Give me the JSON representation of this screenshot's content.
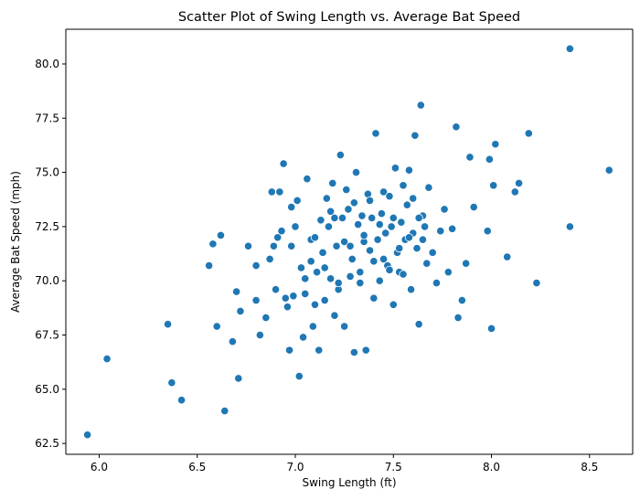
{
  "chart_data": {
    "type": "scatter",
    "title": "Scatter Plot of Swing Length vs. Average Bat Speed",
    "xlabel": "Swing Length (ft)",
    "ylabel": "Average Bat Speed (mph)",
    "xlim": [
      5.83,
      8.72
    ],
    "ylim": [
      62.0,
      81.6
    ],
    "xticks": [
      6.0,
      6.5,
      7.0,
      7.5,
      8.0,
      8.5
    ],
    "xtick_labels": [
      "6.0",
      "6.5",
      "7.0",
      "7.5",
      "8.0",
      "8.5"
    ],
    "yticks": [
      62.5,
      65.0,
      67.5,
      70.0,
      72.5,
      75.0,
      77.5,
      80.0
    ],
    "ytick_labels": [
      "62.5",
      "65.0",
      "67.5",
      "70.0",
      "72.5",
      "75.0",
      "77.5",
      "80.0"
    ],
    "grid": false,
    "marker_color": "#1f77b4",
    "points": [
      [
        5.94,
        62.9
      ],
      [
        6.04,
        66.4
      ],
      [
        6.35,
        68.0
      ],
      [
        6.37,
        65.3
      ],
      [
        6.42,
        64.5
      ],
      [
        6.56,
        70.7
      ],
      [
        6.58,
        71.7
      ],
      [
        6.6,
        67.9
      ],
      [
        6.62,
        72.1
      ],
      [
        6.64,
        64.0
      ],
      [
        6.68,
        67.2
      ],
      [
        6.7,
        69.5
      ],
      [
        6.71,
        65.5
      ],
      [
        6.72,
        68.6
      ],
      [
        6.76,
        71.6
      ],
      [
        6.8,
        70.7
      ],
      [
        6.8,
        69.1
      ],
      [
        6.82,
        67.5
      ],
      [
        6.85,
        68.3
      ],
      [
        6.87,
        71.0
      ],
      [
        6.88,
        74.1
      ],
      [
        6.89,
        71.6
      ],
      [
        6.9,
        69.6
      ],
      [
        6.91,
        72.0
      ],
      [
        6.92,
        74.1
      ],
      [
        6.93,
        72.3
      ],
      [
        6.94,
        75.4
      ],
      [
        6.95,
        69.2
      ],
      [
        6.96,
        68.8
      ],
      [
        6.97,
        66.8
      ],
      [
        6.98,
        73.4
      ],
      [
        6.99,
        69.3
      ],
      [
        7.0,
        72.5
      ],
      [
        7.01,
        73.7
      ],
      [
        7.02,
        65.6
      ],
      [
        7.03,
        70.6
      ],
      [
        7.04,
        67.4
      ],
      [
        7.05,
        70.1
      ],
      [
        7.06,
        74.7
      ],
      [
        7.08,
        71.9
      ],
      [
        7.09,
        67.9
      ],
      [
        7.1,
        72.0
      ],
      [
        7.11,
        70.4
      ],
      [
        7.12,
        66.8
      ],
      [
        7.13,
        72.8
      ],
      [
        7.14,
        71.3
      ],
      [
        7.15,
        69.1
      ],
      [
        7.16,
        73.8
      ],
      [
        7.17,
        72.5
      ],
      [
        7.18,
        70.1
      ],
      [
        7.19,
        74.5
      ],
      [
        7.2,
        68.4
      ],
      [
        7.21,
        71.6
      ],
      [
        7.22,
        69.6
      ],
      [
        7.23,
        75.8
      ],
      [
        7.24,
        72.9
      ],
      [
        7.25,
        67.9
      ],
      [
        7.26,
        74.2
      ],
      [
        7.27,
        73.3
      ],
      [
        7.28,
        70.2
      ],
      [
        7.29,
        71.0
      ],
      [
        7.3,
        66.7
      ],
      [
        7.31,
        75.0
      ],
      [
        7.32,
        72.6
      ],
      [
        7.33,
        69.9
      ],
      [
        7.34,
        73.0
      ],
      [
        7.35,
        71.8
      ],
      [
        7.36,
        66.8
      ],
      [
        7.37,
        74.0
      ],
      [
        7.38,
        71.4
      ],
      [
        7.39,
        72.9
      ],
      [
        7.4,
        69.2
      ],
      [
        7.41,
        76.8
      ],
      [
        7.42,
        71.9
      ],
      [
        7.43,
        70.0
      ],
      [
        7.44,
        73.1
      ],
      [
        7.45,
        74.1
      ],
      [
        7.46,
        72.2
      ],
      [
        7.47,
        70.7
      ],
      [
        7.48,
        73.9
      ],
      [
        7.49,
        72.5
      ],
      [
        7.5,
        68.9
      ],
      [
        7.51,
        75.2
      ],
      [
        7.52,
        71.3
      ],
      [
        7.53,
        70.4
      ],
      [
        7.54,
        72.7
      ],
      [
        7.55,
        74.4
      ],
      [
        7.56,
        71.9
      ],
      [
        7.57,
        73.5
      ],
      [
        7.58,
        75.1
      ],
      [
        7.59,
        69.6
      ],
      [
        7.6,
        72.2
      ],
      [
        7.61,
        76.7
      ],
      [
        7.62,
        71.5
      ],
      [
        7.63,
        68.0
      ],
      [
        7.64,
        78.1
      ],
      [
        7.65,
        73.0
      ],
      [
        7.66,
        72.5
      ],
      [
        7.67,
        70.8
      ],
      [
        7.68,
        74.3
      ],
      [
        7.7,
        71.3
      ],
      [
        7.72,
        69.9
      ],
      [
        7.74,
        72.3
      ],
      [
        7.76,
        73.3
      ],
      [
        7.78,
        70.4
      ],
      [
        7.8,
        72.4
      ],
      [
        7.82,
        77.1
      ],
      [
        7.83,
        68.3
      ],
      [
        7.85,
        69.1
      ],
      [
        7.87,
        70.8
      ],
      [
        7.89,
        75.7
      ],
      [
        7.91,
        73.4
      ],
      [
        7.98,
        72.3
      ],
      [
        7.99,
        75.6
      ],
      [
        8.0,
        67.8
      ],
      [
        8.01,
        74.4
      ],
      [
        8.02,
        76.3
      ],
      [
        8.08,
        71.1
      ],
      [
        8.12,
        74.1
      ],
      [
        8.14,
        74.5
      ],
      [
        8.19,
        76.8
      ],
      [
        8.23,
        69.9
      ],
      [
        8.4,
        72.5
      ],
      [
        8.4,
        80.7
      ],
      [
        8.6,
        75.1
      ],
      [
        7.05,
        69.4
      ],
      [
        7.15,
        70.6
      ],
      [
        7.25,
        71.8
      ],
      [
        7.35,
        72.1
      ],
      [
        7.45,
        71.0
      ],
      [
        7.55,
        70.3
      ],
      [
        7.65,
        71.9
      ],
      [
        7.2,
        72.9
      ],
      [
        7.3,
        73.6
      ],
      [
        7.4,
        70.9
      ],
      [
        7.5,
        72.9
      ],
      [
        7.6,
        73.8
      ],
      [
        7.1,
        68.9
      ],
      [
        7.22,
        69.9
      ],
      [
        7.33,
        70.4
      ],
      [
        7.43,
        72.6
      ],
      [
        7.53,
        71.5
      ],
      [
        7.63,
        72.9
      ],
      [
        7.28,
        71.6
      ],
      [
        7.38,
        73.7
      ],
      [
        7.48,
        70.5
      ],
      [
        7.58,
        72.0
      ],
      [
        7.18,
        73.2
      ],
      [
        7.08,
        70.9
      ],
      [
        6.98,
        71.6
      ]
    ]
  }
}
